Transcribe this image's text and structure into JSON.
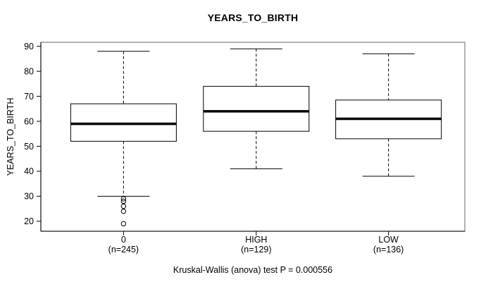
{
  "chart_data": {
    "type": "boxplot",
    "title": "YEARS_TO_BIRTH",
    "ylabel": "YEARS_TO_BIRTH",
    "annotation": "Kruskal-Wallis (anova) test P = 0.000556",
    "ylim": [
      16,
      91.6
    ],
    "y_ticks": [
      20,
      30,
      40,
      50,
      60,
      70,
      80,
      90
    ],
    "grid": false,
    "categories": [
      "0",
      "HIGH",
      "LOW"
    ],
    "groups": [
      {
        "label": "0",
        "sublabel": "(n=245)",
        "n": 245,
        "whisker_low": 30,
        "q1": 52,
        "median": 59,
        "q3": 67,
        "whisker_high": 88,
        "outliers": [
          29,
          28,
          26,
          24,
          19
        ]
      },
      {
        "label": "HIGH",
        "sublabel": "(n=129)",
        "n": 129,
        "whisker_low": 41,
        "q1": 56,
        "median": 64,
        "q3": 74,
        "whisker_high": 89,
        "outliers": []
      },
      {
        "label": "LOW",
        "sublabel": "(n=136)",
        "n": 136,
        "whisker_low": 38,
        "q1": 53,
        "median": 61,
        "q3": 68.5,
        "whisker_high": 87,
        "outliers": []
      }
    ]
  },
  "colors": {
    "line": "#000000",
    "frame": "#888888",
    "axis": "#000000",
    "box_fill": "#ffffff",
    "background": "#ffffff"
  }
}
